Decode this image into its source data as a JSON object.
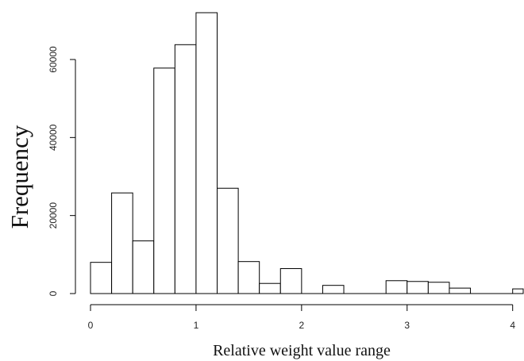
{
  "chart_data": {
    "type": "bar",
    "title": "",
    "xlabel": "Relative weight value range",
    "ylabel": "Frequency",
    "xlim": [
      0,
      4.1
    ],
    "ylim": [
      0,
      72000
    ],
    "grid": false,
    "x_ticks": [
      {
        "value": 0,
        "label": "0"
      },
      {
        "value": 1,
        "label": "1"
      },
      {
        "value": 2,
        "label": "2"
      },
      {
        "value": 3,
        "label": "3"
      },
      {
        "value": 4,
        "label": "4"
      }
    ],
    "y_ticks": [
      {
        "value": 0,
        "label": "0"
      },
      {
        "value": 20000,
        "label": "20000"
      },
      {
        "value": 40000,
        "label": "40000"
      },
      {
        "value": 60000,
        "label": "60000"
      }
    ],
    "bins": [
      {
        "x0": 0.0,
        "x1": 0.2,
        "count": 8000
      },
      {
        "x0": 0.2,
        "x1": 0.4,
        "count": 25800
      },
      {
        "x0": 0.4,
        "x1": 0.6,
        "count": 13500
      },
      {
        "x0": 0.6,
        "x1": 0.8,
        "count": 57800
      },
      {
        "x0": 0.8,
        "x1": 1.0,
        "count": 63800
      },
      {
        "x0": 1.0,
        "x1": 1.2,
        "count": 72000
      },
      {
        "x0": 1.2,
        "x1": 1.4,
        "count": 27000
      },
      {
        "x0": 1.4,
        "x1": 1.6,
        "count": 8200
      },
      {
        "x0": 1.6,
        "x1": 1.8,
        "count": 2600
      },
      {
        "x0": 1.8,
        "x1": 2.0,
        "count": 6400
      },
      {
        "x0": 2.0,
        "x1": 2.2,
        "count": 0
      },
      {
        "x0": 2.2,
        "x1": 2.4,
        "count": 2100
      },
      {
        "x0": 2.4,
        "x1": 2.6,
        "count": 0
      },
      {
        "x0": 2.6,
        "x1": 2.8,
        "count": 0
      },
      {
        "x0": 2.8,
        "x1": 3.0,
        "count": 3300
      },
      {
        "x0": 3.0,
        "x1": 3.2,
        "count": 3100
      },
      {
        "x0": 3.2,
        "x1": 3.4,
        "count": 2900
      },
      {
        "x0": 3.4,
        "x1": 3.6,
        "count": 1400
      },
      {
        "x0": 3.6,
        "x1": 3.8,
        "count": 0
      },
      {
        "x0": 3.8,
        "x1": 4.0,
        "count": 0
      },
      {
        "x0": 4.0,
        "x1": 4.2,
        "count": 1200
      }
    ],
    "style": {
      "bar_fill": "#ffffff",
      "bar_stroke": "#000000",
      "axis_color": "#000000",
      "text_color": "#111111"
    }
  }
}
